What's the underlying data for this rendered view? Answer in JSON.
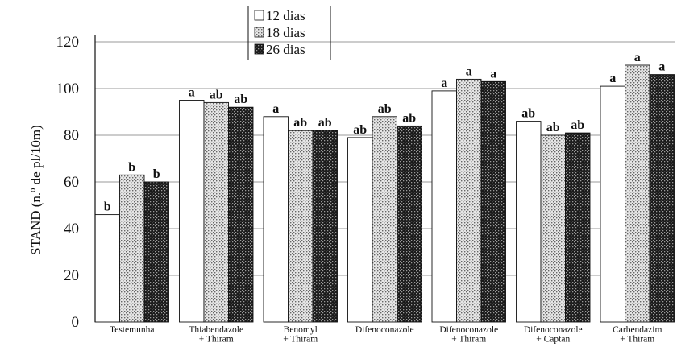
{
  "chart_data": {
    "type": "bar",
    "ylabel": "STAND (n.º de pl/10m)",
    "ylim": [
      0,
      120
    ],
    "yticks": [
      0,
      20,
      40,
      60,
      80,
      100,
      120
    ],
    "grid": true,
    "legend_position": "top-center",
    "categories": [
      [
        "Testemunha"
      ],
      [
        "Thiabendazole",
        "+ Thiram"
      ],
      [
        "Benomyl",
        "+ Thiram"
      ],
      [
        "Difenoconazole"
      ],
      [
        "Difenoconazole",
        "+ Thiram"
      ],
      [
        "Difenoconazole",
        "+ Captan"
      ],
      [
        "Carbendazim",
        "+ Thiram"
      ]
    ],
    "series": [
      {
        "name": "12 dias",
        "pattern": "white",
        "values": [
          46,
          95,
          88,
          79,
          99,
          86,
          101
        ],
        "labels": [
          "b",
          "a",
          "a",
          "ab",
          "a",
          "ab",
          "a"
        ]
      },
      {
        "name": "18 dias",
        "pattern": "dotted",
        "values": [
          63,
          94,
          82,
          88,
          104,
          80,
          110
        ],
        "labels": [
          "b",
          "ab",
          "ab",
          "ab",
          "a",
          "ab",
          "a"
        ]
      },
      {
        "name": "26 dias",
        "pattern": "dark",
        "values": [
          60,
          92,
          82,
          84,
          103,
          81,
          106
        ],
        "labels": [
          "b",
          "ab",
          "ab",
          "ab",
          "a",
          "ab",
          "a"
        ]
      }
    ]
  }
}
